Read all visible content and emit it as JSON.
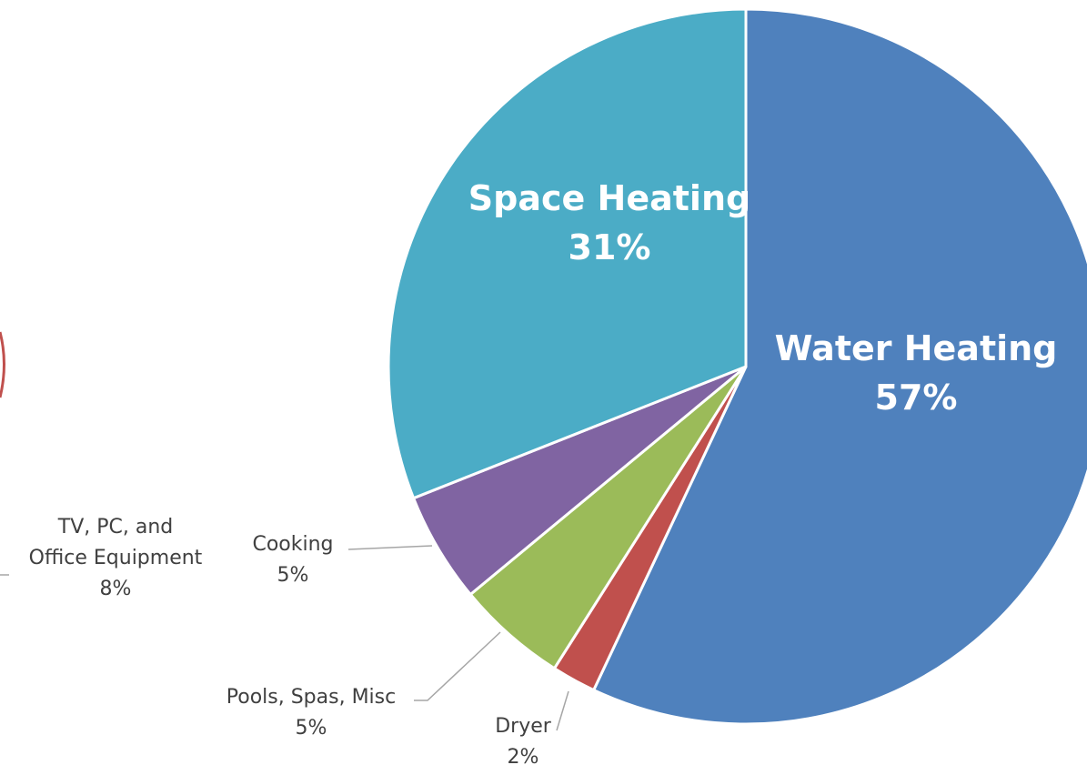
{
  "chart_data": {
    "type": "pie",
    "categories": [
      "Water Heating",
      "Dryer",
      "Pools, Spas, Misc",
      "Cooking",
      "Space Heating"
    ],
    "values": [
      57,
      2,
      5,
      5,
      31
    ],
    "value_labels": [
      "57%",
      "2%",
      "5%",
      "5%",
      "31%"
    ],
    "colors": [
      "#4f81bd",
      "#c0504d",
      "#9bbb59",
      "#8064a2",
      "#4bacc6"
    ],
    "annotations": [
      {
        "text": "TV, PC, and\nOffice Equipment",
        "value": 8,
        "value_label": "8%",
        "color": "#c0504d"
      }
    ]
  }
}
